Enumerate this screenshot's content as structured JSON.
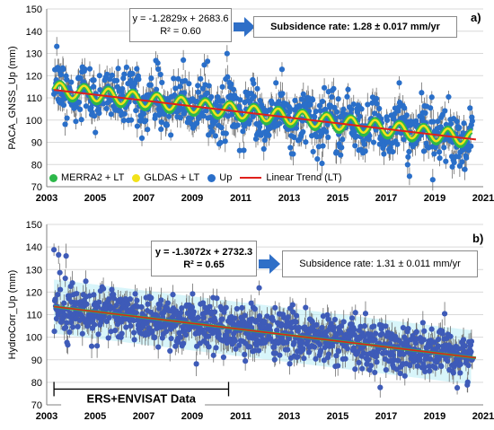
{
  "chart_data": [
    {
      "panel": "a)",
      "type": "scatter",
      "ylabel": "PACA_GNSS_Up (mm)",
      "xlabel": "",
      "xlim": [
        2003,
        2021
      ],
      "ylim": [
        70,
        150
      ],
      "xticks": [
        "2003",
        "2005",
        "2007",
        "2009",
        "2011",
        "2013",
        "2015",
        "2017",
        "2019",
        "2021"
      ],
      "yticks": [
        "70",
        "80",
        "90",
        "100",
        "110",
        "120",
        "130",
        "140",
        "150"
      ],
      "equation": "y = -1.2829x + 2683.6",
      "r2": "R² = 0.60",
      "rate_label": "Subsidence rate: 1.28 ± 0.017 mm/yr",
      "trend": {
        "slope": -1.2829,
        "intercept": 2683.6
      },
      "seasonal_amplitude_mm": 3.5,
      "noise_std_mm": 6,
      "series": [
        {
          "name": "MERRA2 + LT",
          "color": "#2db84a"
        },
        {
          "name": "GLDAS + LT",
          "color": "#f2e21a"
        },
        {
          "name": "Up",
          "color": "#2a6fc9"
        },
        {
          "name": "Linear Trend (LT)",
          "color": "#e0201b"
        }
      ],
      "legend_position": "bottom-left"
    },
    {
      "panel": "b)",
      "type": "scatter",
      "ylabel": "HydroCorr_Up (mm)",
      "xlabel": "",
      "xlim": [
        2003,
        2021
      ],
      "ylim": [
        70,
        150
      ],
      "xticks": [
        "2003",
        "2005",
        "2007",
        "2009",
        "2011",
        "2013",
        "2015",
        "2017",
        "2019",
        "2021"
      ],
      "yticks": [
        "70",
        "80",
        "90",
        "100",
        "110",
        "120",
        "130",
        "140",
        "150"
      ],
      "equation": "y = -1.3072x + 2732.3",
      "r2": "R² = 0.65",
      "rate_label": "Subsidence rate: 1.31 ± 0.011 mm/yr",
      "trend": {
        "slope": -1.3072,
        "intercept": 2732.3
      },
      "noise_std_mm": 5.5,
      "bracket_label": "ERS+ENVISAT Data",
      "bracket_range": [
        2003.3,
        2010.5
      ],
      "series": [
        {
          "name": "HydroCorr Up",
          "color": "#3e5bb8"
        },
        {
          "name": "Linear Trend",
          "color": "#e0201b"
        }
      ]
    }
  ]
}
